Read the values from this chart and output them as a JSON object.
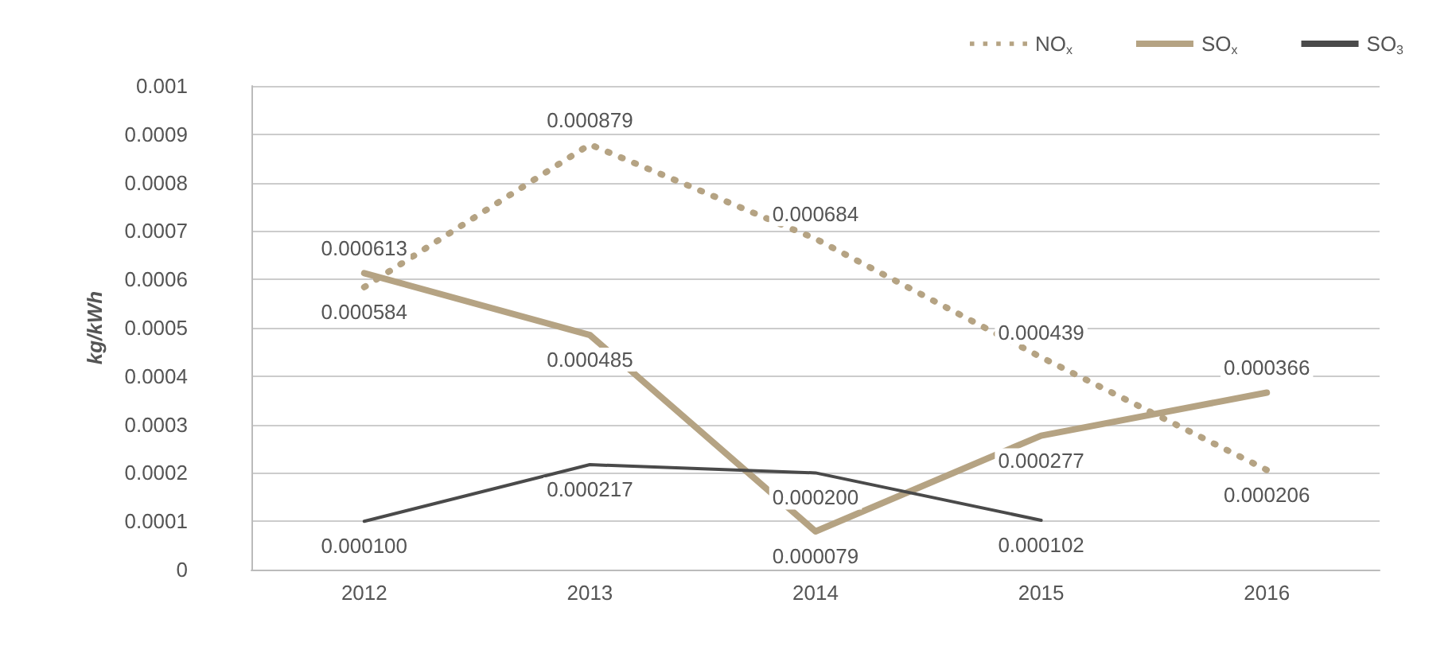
{
  "chart_data": {
    "type": "line",
    "ylabel": "kg/kWh",
    "categories": [
      "2012",
      "2013",
      "2014",
      "2015",
      "2016"
    ],
    "series": [
      {
        "name": "NO$_{x}$",
        "color": "#b5a383",
        "line_style": "dotted",
        "values": [
          0.000584,
          0.000879,
          0.000684,
          0.000439,
          0.000206
        ],
        "value_labels": [
          "0.000584",
          "0.000879",
          "0.000684",
          "0.000439",
          "0.000206"
        ]
      },
      {
        "name": "SO$_{x}$",
        "color": "#b5a383",
        "line_style": "solid",
        "values": [
          0.000613,
          0.000485,
          7.9e-05,
          0.000277,
          0.000366
        ],
        "value_labels": [
          "0.000613",
          "0.000485",
          "0.000079",
          "0.000277",
          "0.000366"
        ]
      },
      {
        "name": "SO$_{3}$",
        "color": "#4a4a4a",
        "line_style": "solid",
        "values": [
          0.0001,
          0.000217,
          0.0002,
          0.000102,
          null
        ],
        "value_labels": [
          "0.000100",
          "0.000217",
          "0.000200",
          "0.000102",
          null
        ]
      }
    ],
    "ylim": [
      0,
      0.001
    ],
    "yticks": [
      0,
      0.0001,
      0.0002,
      0.0003,
      0.0004,
      0.0005,
      0.0006,
      0.0007,
      0.0008,
      0.0009,
      0.001
    ],
    "grid": "y",
    "legend": "top right",
    "marker": "none"
  }
}
